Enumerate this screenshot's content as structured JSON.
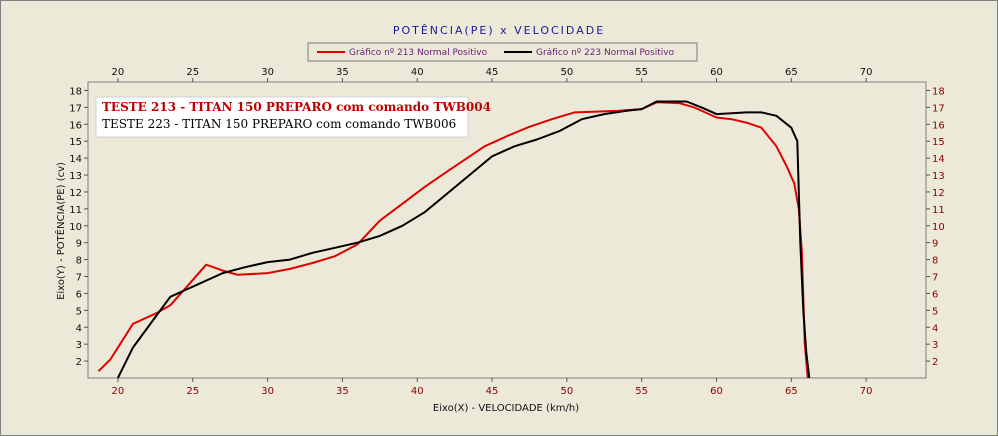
{
  "chart_data": {
    "type": "line",
    "title": "POTÊNCIA(PE)  x  VELOCIDADE",
    "xlabel": "Eixo(X) - VELOCIDADE (km/h)",
    "ylabel": "Eixo(Y) - POTÊNCIA(PE) (cv)",
    "xlim": [
      18,
      74
    ],
    "ylim": [
      1,
      18.5
    ],
    "x_ticks": [
      20,
      25,
      30,
      35,
      40,
      45,
      50,
      55,
      60,
      65,
      70
    ],
    "y_ticks": [
      2,
      3,
      4,
      5,
      6,
      7,
      8,
      9,
      10,
      11,
      12,
      13,
      14,
      15,
      16,
      17,
      18
    ],
    "grid": false,
    "legend_position": "top",
    "annotations": [
      "TESTE 213 - TITAN 150 PREPARO com comando TWB004",
      "TESTE 223 - TITAN 150 PREPARO com comando TWB006"
    ],
    "series": [
      {
        "name": "Gráfico nº 213 Normal Positivo",
        "color": "#e00000",
        "x": [
          18.7,
          19.5,
          21,
          22.5,
          23.5,
          24.5,
          25.9,
          27,
          28,
          30,
          31.5,
          33,
          34.5,
          36,
          37.5,
          39,
          40.5,
          42,
          43.5,
          44.5,
          46,
          47.5,
          49,
          50.5,
          52,
          53.5,
          55,
          56,
          57.5,
          58.5,
          60,
          61,
          62,
          63,
          64,
          64.7,
          65.2,
          65.5,
          65.7,
          65.9,
          66.1
        ],
        "values": [
          1.4,
          2.1,
          4.2,
          4.8,
          5.3,
          6.3,
          7.7,
          7.35,
          7.1,
          7.2,
          7.45,
          7.8,
          8.2,
          8.9,
          10.3,
          11.3,
          12.3,
          13.2,
          14.1,
          14.7,
          15.3,
          15.85,
          16.3,
          16.7,
          16.75,
          16.8,
          16.9,
          17.3,
          17.25,
          17.0,
          16.4,
          16.3,
          16.1,
          15.8,
          14.7,
          13.5,
          12.5,
          11.0,
          8.5,
          3.0,
          1.0
        ]
      },
      {
        "name": "Gráfico nº 223 Normal Positivo",
        "color": "#000000",
        "x": [
          20,
          21,
          22.5,
          23.5,
          24.5,
          25.5,
          27,
          28.5,
          30,
          31.5,
          33,
          34.5,
          36,
          37.5,
          39,
          40.5,
          42,
          43.5,
          45,
          46.5,
          48,
          49.5,
          51,
          52.5,
          54,
          55,
          56,
          57,
          58,
          59,
          60,
          61,
          62,
          63,
          64,
          65,
          65.4,
          65.6,
          65.8,
          66,
          66.2
        ],
        "values": [
          1.0,
          2.8,
          4.6,
          5.8,
          6.2,
          6.6,
          7.2,
          7.55,
          7.85,
          8.0,
          8.4,
          8.7,
          9.0,
          9.4,
          10.0,
          10.8,
          11.9,
          13.0,
          14.1,
          14.7,
          15.1,
          15.6,
          16.3,
          16.6,
          16.8,
          16.9,
          17.35,
          17.35,
          17.35,
          17.0,
          16.6,
          16.65,
          16.7,
          16.7,
          16.5,
          15.8,
          15.0,
          9.0,
          5.0,
          2.5,
          1.0
        ]
      }
    ]
  }
}
